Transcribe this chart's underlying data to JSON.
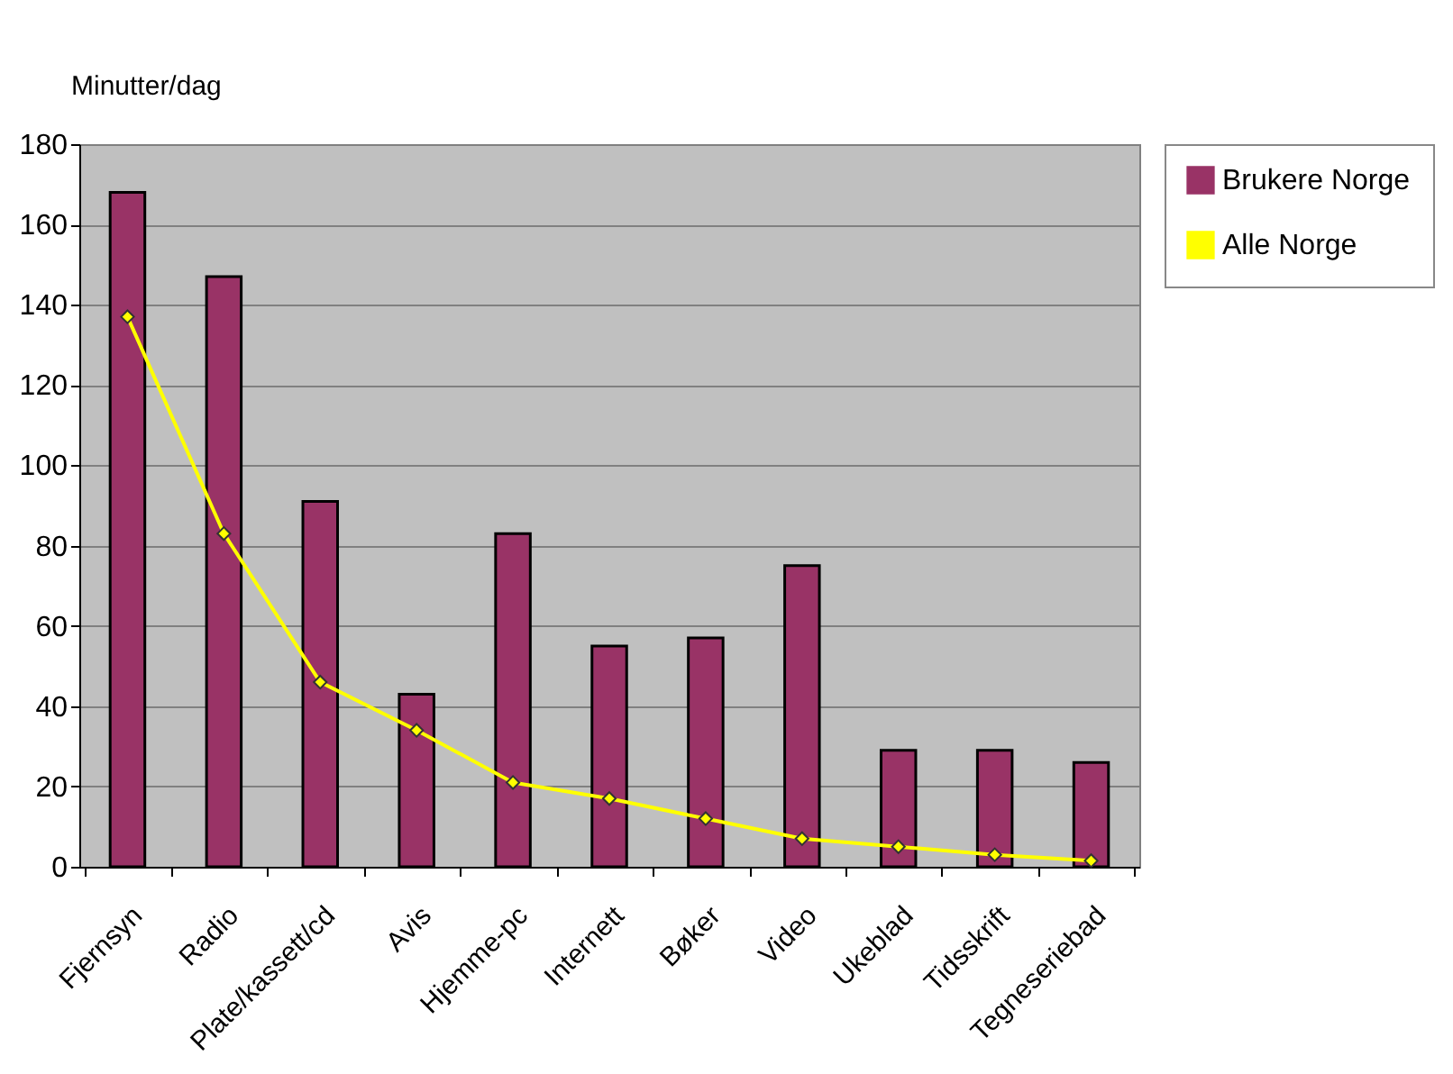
{
  "chart_data": {
    "type": "bar",
    "ylabel": "Minutter/dag",
    "categories": [
      "Fjernsyn",
      "Radio",
      "Plate/kassett/cd",
      "Avis",
      "Hjemme-pc",
      "Internett",
      "Bøker",
      "Video",
      "Ukeblad",
      "Tidsskrift",
      "Tegneseriebad"
    ],
    "series": [
      {
        "name": "Brukere Norge",
        "color": "#993366",
        "values": [
          168,
          147,
          91,
          43,
          83,
          55,
          57,
          75,
          29,
          29,
          26
        ]
      },
      {
        "name": "Alle Norge",
        "type": "line",
        "color": "#ffff00",
        "marker": "diamond",
        "values": [
          137,
          83,
          46,
          34,
          21,
          17,
          12,
          7,
          5,
          3,
          1.5
        ]
      }
    ],
    "ylim": [
      0,
      180
    ],
    "yticks": [
      0,
      20,
      40,
      60,
      80,
      100,
      120,
      140,
      160,
      180
    ],
    "grid": "y",
    "legend": "top right"
  }
}
